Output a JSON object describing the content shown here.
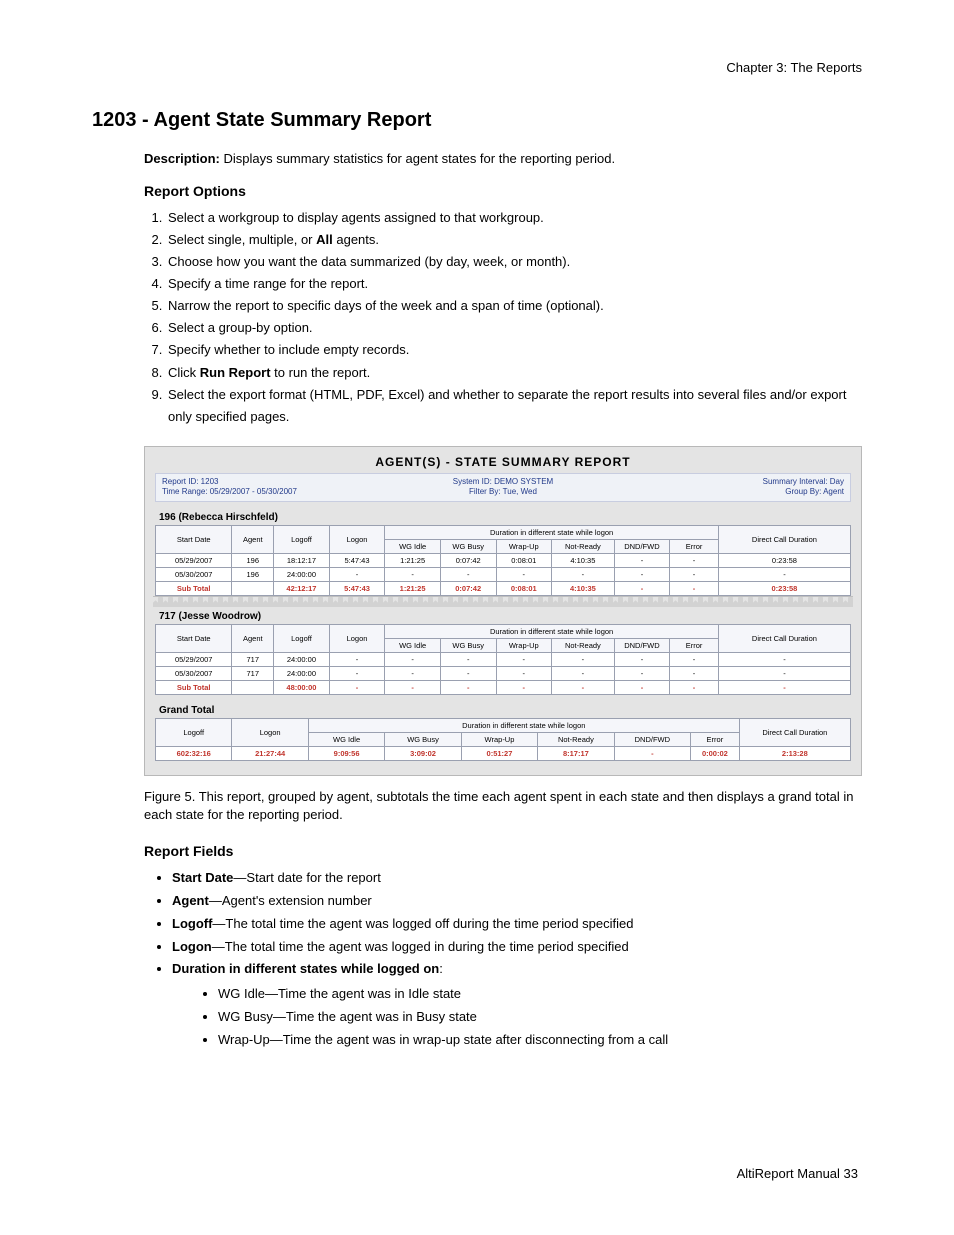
{
  "runningHead": "Chapter 3:  The Reports",
  "heading": "1203 - Agent State Summary Report",
  "descriptionLabel": "Description:",
  "descriptionText": " Displays summary statistics for agent states for the reporting period.",
  "reportOptionsHeading": "Report Options",
  "options": [
    "Select a workgroup to display agents assigned to that workgroup.",
    "Select single, multiple, or <b>All</b> agents.",
    "Choose how you want the data summarized (by day, week, or month).",
    "Specify a time range for the report.",
    "Narrow the report to specific days of the week and a span of time (optional).",
    "Select a group-by option.",
    "Specify whether to include empty records.",
    "Click <b>Run Report</b> to run the report.",
    "Select the export format (HTML, PDF, Excel) and whether to separate the report results into several files and/or export only specified pages."
  ],
  "figureCaptionLabel": "Figure 5.",
  "figureCaptionText": "   This report, grouped by agent, subtotals the time each agent spent in each state and then displays a grand total in each state for the reporting period.",
  "reportFieldsHeading": "Report Fields",
  "fields": [
    {
      "term": "Start Date",
      "def": "—Start date for the report"
    },
    {
      "term": "Agent",
      "def": "—Agent's extension number"
    },
    {
      "term": "Logoff",
      "def": "—The total time the agent was logged off during the time period specified"
    },
    {
      "term": "Logon",
      "def": "—The total time the agent was logged in during the time period specified"
    }
  ],
  "durationHeader": "Duration in different states while logged on",
  "durationItems": [
    {
      "term": "WG Idle",
      "def": "—Time the agent was in Idle state"
    },
    {
      "term": "WG Busy",
      "def": "—Time the agent was in Busy state"
    },
    {
      "term": "Wrap-Up",
      "def": "—Time the agent was in wrap-up state after disconnecting from a call"
    }
  ],
  "footerText": "AltiReport Manual   33",
  "report": {
    "title": "AGENT(S) - STATE SUMMARY REPORT",
    "meta": {
      "reportId": "Report ID: 1203",
      "systemId": "System ID: DEMO SYSTEM",
      "summaryInterval": "Summary Interval: Day",
      "timeRange": "Time Range: 05/29/2007 - 05/30/2007",
      "filterBy": "Filter By: Tue, Wed",
      "groupBy": "Group By: Agent"
    },
    "spanHeader": "Duration in different state while logon",
    "columns": [
      "Start Date",
      "Agent",
      "Logoff",
      "Logon",
      "WG Idle",
      "WG Busy",
      "Wrap-Up",
      "Not-Ready",
      "DND/FWD",
      "Error",
      "Direct Call Duration"
    ],
    "widths": [
      "11%",
      "6%",
      "8%",
      "8%",
      "8%",
      "8%",
      "8%",
      "9%",
      "8%",
      "7%",
      "19%"
    ],
    "agents": [
      {
        "label": "196 (Rebecca Hirschfeld)",
        "rows": [
          [
            "05/29/2007",
            "196",
            "18:12:17",
            "5:47:43",
            "1:21:25",
            "0:07:42",
            "0:08:01",
            "4:10:35",
            "-",
            "-",
            "0:23:58"
          ],
          [
            "05/30/2007",
            "196",
            "24:00:00",
            "-",
            "-",
            "-",
            "-",
            "-",
            "-",
            "-",
            "-"
          ]
        ],
        "subtotal": [
          "Sub Total",
          "",
          "42:12:17",
          "5:47:43",
          "1:21:25",
          "0:07:42",
          "0:08:01",
          "4:10:35",
          "-",
          "-",
          "0:23:58"
        ]
      },
      {
        "label": "717 (Jesse Woodrow)",
        "rows": [
          [
            "05/29/2007",
            "717",
            "24:00:00",
            "-",
            "-",
            "-",
            "-",
            "-",
            "-",
            "-",
            "-"
          ],
          [
            "05/30/2007",
            "717",
            "24:00:00",
            "-",
            "-",
            "-",
            "-",
            "-",
            "-",
            "-",
            "-"
          ]
        ],
        "subtotal": [
          "Sub Total",
          "",
          "48:00:00",
          "-",
          "-",
          "-",
          "-",
          "-",
          "-",
          "-",
          "-"
        ]
      }
    ],
    "grand": {
      "label": "Grand Total",
      "spanHeader": "Duration in different state while logon",
      "columns": [
        "Logoff",
        "Logon",
        "WG Idle",
        "WG Busy",
        "Wrap-Up",
        "Not-Ready",
        "DND/FWD",
        "Error",
        "Direct Call Duration"
      ],
      "values": [
        "602:32:16",
        "21:27:44",
        "9:09:56",
        "3:09:02",
        "0:51:27",
        "8:17:17",
        "-",
        "0:00:02",
        "2:13:28"
      ]
    }
  }
}
